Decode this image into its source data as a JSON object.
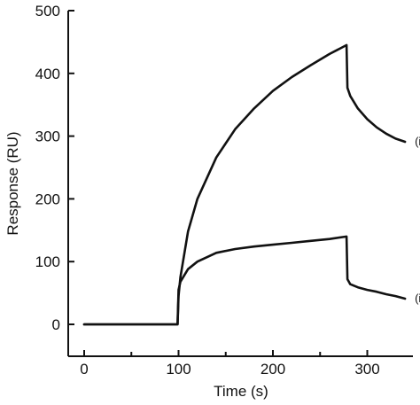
{
  "chart_data": {
    "type": "line",
    "xlabel": "Time (s)",
    "ylabel": "Response (RU)",
    "xlim": [
      -20,
      350
    ],
    "ylim": [
      -50,
      500
    ],
    "x_ticks": [
      0,
      100,
      200,
      300
    ],
    "x_minor_ticks": [
      50,
      150,
      250
    ],
    "y_ticks": [
      0,
      100,
      200,
      300,
      400,
      500
    ],
    "grid": false,
    "series": [
      {
        "name": "(i)",
        "x": [
          0,
          99,
          100,
          102,
          110,
          120,
          140,
          160,
          180,
          200,
          220,
          240,
          260,
          278,
          279,
          282,
          290,
          300,
          310,
          320,
          330,
          340
        ],
        "y": [
          0,
          0,
          45,
          75,
          148,
          200,
          266,
          311,
          344,
          372,
          394,
          413,
          431,
          445,
          377,
          364,
          344,
          327,
          314,
          304,
          296,
          291
        ]
      },
      {
        "name": "(ii)",
        "x": [
          0,
          99,
          100,
          102,
          110,
          120,
          140,
          160,
          180,
          200,
          220,
          240,
          260,
          278,
          279,
          282,
          290,
          300,
          310,
          320,
          330,
          340
        ],
        "y": [
          0,
          0,
          55,
          68,
          88,
          100,
          114,
          120,
          124,
          127,
          130,
          133,
          136,
          140,
          72,
          64,
          59,
          55,
          52,
          48,
          45,
          41
        ]
      }
    ]
  }
}
